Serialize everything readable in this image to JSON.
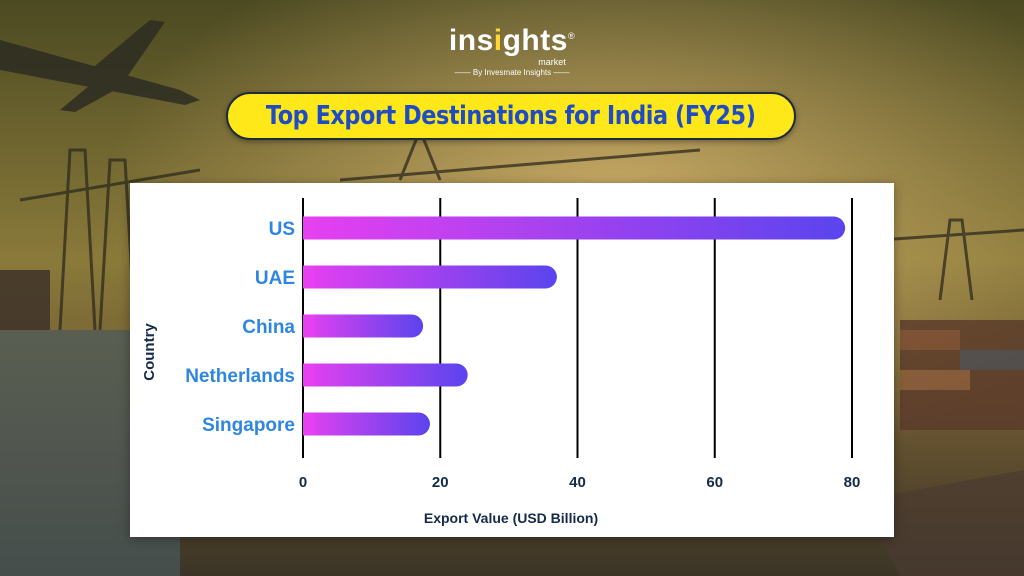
{
  "brand": {
    "name_part1": "ins",
    "name_highlight": "i",
    "name_part2": "ghts",
    "registered_mark": "®",
    "sub": "market",
    "by_line": "By Invesmate Insights"
  },
  "chart_data": {
    "type": "bar",
    "orientation": "horizontal",
    "title": "Top Export Destinations for India (FY25)",
    "xlabel": "Export Value (USD Billion)",
    "ylabel": "Country",
    "categories": [
      "US",
      "UAE",
      "China",
      "Netherlands",
      "Singapore"
    ],
    "values": [
      79,
      37,
      17.5,
      24,
      18.5
    ],
    "xlim": [
      0,
      80
    ],
    "xticks": [
      0,
      20,
      40,
      60,
      80
    ],
    "grid": true,
    "colors": {
      "bar_start": "#e640f0",
      "bar_end": "#5a44ee",
      "grid": "#000000",
      "category_label": "#2f86e0",
      "title_bg": "#ffe81a",
      "title_text": "#1d4cc4"
    }
  }
}
